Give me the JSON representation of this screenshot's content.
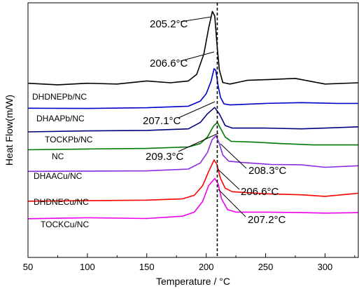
{
  "chart_data": {
    "type": "line",
    "title": "",
    "xlabel": "Temperature / °C",
    "ylabel": "Heat Flow(m/W)",
    "xlim": [
      50,
      328
    ],
    "ylim": [
      0,
      100
    ],
    "x_ticks": [
      50,
      100,
      150,
      200,
      250,
      300
    ],
    "y_tick_labels": false,
    "grid": false,
    "legend": "none",
    "reference_line": {
      "x": 209.3,
      "style": "dashed",
      "color": "#000000"
    },
    "series": [
      {
        "name": "DHDNEPb/NC",
        "color": "#000000",
        "points": [
          [
            50,
            68.4
          ],
          [
            75,
            67.8
          ],
          [
            100,
            68.4
          ],
          [
            125,
            68.1
          ],
          [
            150,
            69.3
          ],
          [
            170,
            68.6
          ],
          [
            185,
            69.3
          ],
          [
            192,
            71.9
          ],
          [
            198,
            79.9
          ],
          [
            202,
            90.0
          ],
          [
            205.2,
            96.6
          ],
          [
            207.2,
            94.8
          ],
          [
            209,
            83.9
          ],
          [
            211,
            73.7
          ],
          [
            214,
            68.7
          ],
          [
            220,
            68.1
          ],
          [
            235,
            69.6
          ],
          [
            250,
            69.8
          ],
          [
            275,
            70.3
          ],
          [
            300,
            68.1
          ],
          [
            328,
            68.6
          ]
        ]
      },
      {
        "name": "DHAAPb/NC",
        "color": "#0000cc",
        "points": [
          [
            50,
            58.6
          ],
          [
            100,
            58.5
          ],
          [
            150,
            58.8
          ],
          [
            185,
            59.4
          ],
          [
            195,
            61.4
          ],
          [
            200,
            64.3
          ],
          [
            204,
            69.1
          ],
          [
            206.6,
            74.1
          ],
          [
            208,
            73.5
          ],
          [
            210,
            67.4
          ],
          [
            212,
            62.9
          ],
          [
            215,
            60.3
          ],
          [
            220,
            59.9
          ],
          [
            250,
            60.5
          ],
          [
            280,
            60.8
          ],
          [
            310,
            60.5
          ],
          [
            328,
            60.5
          ]
        ]
      },
      {
        "name": "TOCKPb/NC",
        "color": "#000080",
        "points": [
          [
            50,
            49.3
          ],
          [
            100,
            49.7
          ],
          [
            150,
            49.9
          ],
          [
            185,
            50.5
          ],
          [
            195,
            53.0
          ],
          [
            201,
            56.4
          ],
          [
            207.1,
            58.9
          ],
          [
            211,
            56.4
          ],
          [
            216,
            51.8
          ],
          [
            222,
            50.8
          ],
          [
            250,
            50.8
          ],
          [
            280,
            50.5
          ],
          [
            300,
            50.8
          ],
          [
            328,
            51.3
          ]
        ]
      },
      {
        "name": "NC",
        "color": "#007700",
        "points": [
          [
            50,
            42.3
          ],
          [
            100,
            42.6
          ],
          [
            150,
            42.8
          ],
          [
            185,
            43.4
          ],
          [
            195,
            44.7
          ],
          [
            201,
            47.3
          ],
          [
            206,
            51.5
          ],
          [
            209.3,
            53.0
          ],
          [
            212,
            50.7
          ],
          [
            216,
            47.3
          ],
          [
            221,
            45.6
          ],
          [
            240,
            45.3
          ],
          [
            260,
            44.8
          ],
          [
            290,
            44.2
          ],
          [
            328,
            44.2
          ]
        ]
      },
      {
        "name": "DHAACu/NC",
        "color": "#8a2be2",
        "points": [
          [
            50,
            33.8
          ],
          [
            100,
            33.9
          ],
          [
            150,
            34.0
          ],
          [
            185,
            34.7
          ],
          [
            195,
            37.1
          ],
          [
            201,
            41.2
          ],
          [
            205,
            46.3
          ],
          [
            208.3,
            47.8
          ],
          [
            211,
            44.7
          ],
          [
            214,
            40.2
          ],
          [
            219,
            37.8
          ],
          [
            230,
            37.3
          ],
          [
            255,
            36.5
          ],
          [
            280,
            36.4
          ],
          [
            300,
            35.4
          ],
          [
            328,
            36.0
          ]
        ]
      },
      {
        "name": "DHDNECu/NC",
        "color": "#ff0000",
        "points": [
          [
            50,
            22.1
          ],
          [
            100,
            22.3
          ],
          [
            150,
            22.5
          ],
          [
            180,
            23.0
          ],
          [
            190,
            24.4
          ],
          [
            197,
            28.2
          ],
          [
            202,
            33.7
          ],
          [
            206.6,
            38.3
          ],
          [
            209,
            36.5
          ],
          [
            212,
            31.0
          ],
          [
            216,
            27.2
          ],
          [
            222,
            25.8
          ],
          [
            250,
            25.0
          ],
          [
            280,
            24.6
          ],
          [
            300,
            24.0
          ],
          [
            328,
            25.2
          ]
        ]
      },
      {
        "name": "TOCKCu/NC",
        "color": "#ee00ee",
        "points": [
          [
            50,
            15.2
          ],
          [
            100,
            15.6
          ],
          [
            150,
            15.3
          ],
          [
            180,
            16.2
          ],
          [
            190,
            17.8
          ],
          [
            197,
            22.0
          ],
          [
            202,
            28.2
          ],
          [
            207.2,
            31.0
          ],
          [
            210,
            28.9
          ],
          [
            213,
            22.9
          ],
          [
            218,
            18.8
          ],
          [
            225,
            17.8
          ],
          [
            250,
            17.8
          ],
          [
            280,
            17.6
          ],
          [
            300,
            17.4
          ],
          [
            328,
            17.6
          ]
        ]
      }
    ],
    "series_labels": [
      {
        "text": "DHDNEPb/NC",
        "series": 0
      },
      {
        "text": "DHAAPb/NC",
        "series": 1
      },
      {
        "text": "TOCKPb/NC",
        "series": 2
      },
      {
        "text": "NC",
        "series": 3
      },
      {
        "text": "DHAACu/NC",
        "series": 4
      },
      {
        "text": "DHDNECu/NC",
        "series": 5
      },
      {
        "text": "TOCKCu/NC",
        "series": 6
      }
    ],
    "annotations": [
      {
        "text": "205.2°C",
        "x": 205.2,
        "y": 96.6
      },
      {
        "text": "206.6°C",
        "x": 206.6,
        "y": 74.1
      },
      {
        "text": "207.1°C",
        "x": 207.1,
        "y": 58.9
      },
      {
        "text": "209.3°C",
        "x": 209.3,
        "y": 53.0
      },
      {
        "text": "208.3°C",
        "x": 208.3,
        "y": 47.8
      },
      {
        "text": "206.6°C",
        "x": 206.6,
        "y": 38.3
      },
      {
        "text": "207.2°C",
        "x": 207.2,
        "y": 31.0
      }
    ]
  }
}
